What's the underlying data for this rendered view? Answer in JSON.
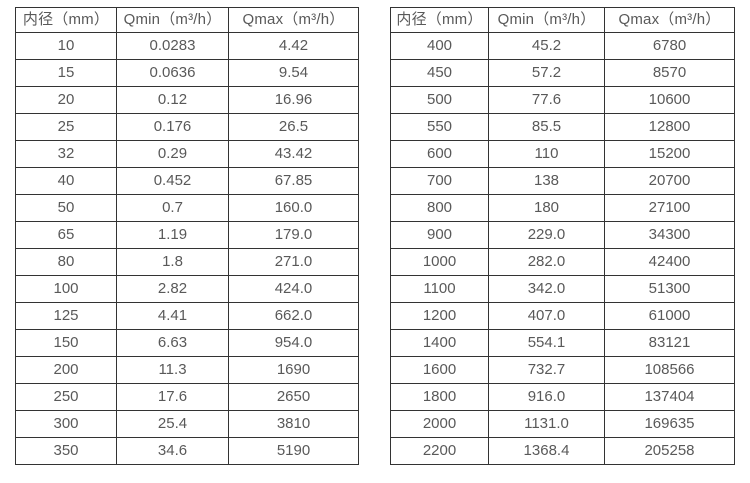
{
  "colors": {
    "border": "#333333",
    "text": "#595959",
    "background": "#ffffff"
  },
  "tables": {
    "left": {
      "title": "small-diameter-flow-rates",
      "headers": [
        "内径（mm）",
        "Qmin（m³/h）",
        "Qmax（m³/h）"
      ],
      "col_names": [
        "cell-inner-diameter",
        "cell-qmin",
        "cell-qmax"
      ],
      "rows": [
        [
          "10",
          "0.0283",
          "4.42"
        ],
        [
          "15",
          "0.0636",
          "9.54"
        ],
        [
          "20",
          "0.12",
          "16.96"
        ],
        [
          "25",
          "0.176",
          "26.5"
        ],
        [
          "32",
          "0.29",
          "43.42"
        ],
        [
          "40",
          "0.452",
          "67.85"
        ],
        [
          "50",
          "0.7",
          "160.0"
        ],
        [
          "65",
          "1.19",
          "179.0"
        ],
        [
          "80",
          "1.8",
          "271.0"
        ],
        [
          "100",
          "2.82",
          "424.0"
        ],
        [
          "125",
          "4.41",
          "662.0"
        ],
        [
          "150",
          "6.63",
          "954.0"
        ],
        [
          "200",
          "11.3",
          "1690"
        ],
        [
          "250",
          "17.6",
          "2650"
        ],
        [
          "300",
          "25.4",
          "3810"
        ],
        [
          "350",
          "34.6",
          "5190"
        ]
      ]
    },
    "right": {
      "title": "large-diameter-flow-rates",
      "headers": [
        "内径（mm）",
        "Qmin（m³/h）",
        "Qmax（m³/h）"
      ],
      "col_names": [
        "cell-inner-diameter",
        "cell-qmin",
        "cell-qmax"
      ],
      "rows": [
        [
          "400",
          "45.2",
          "6780"
        ],
        [
          "450",
          "57.2",
          "8570"
        ],
        [
          "500",
          "77.6",
          "10600"
        ],
        [
          "550",
          "85.5",
          "12800"
        ],
        [
          "600",
          "110",
          "15200"
        ],
        [
          "700",
          "138",
          "20700"
        ],
        [
          "800",
          "180",
          "27100"
        ],
        [
          "900",
          "229.0",
          "34300"
        ],
        [
          "1000",
          "282.0",
          "42400"
        ],
        [
          "1100",
          "342.0",
          "51300"
        ],
        [
          "1200",
          "407.0",
          "61000"
        ],
        [
          "1400",
          "554.1",
          "83121"
        ],
        [
          "1600",
          "732.7",
          "108566"
        ],
        [
          "1800",
          "916.0",
          "137404"
        ],
        [
          "2000",
          "1131.0",
          "169635"
        ],
        [
          "2200",
          "1368.4",
          "205258"
        ]
      ]
    }
  }
}
